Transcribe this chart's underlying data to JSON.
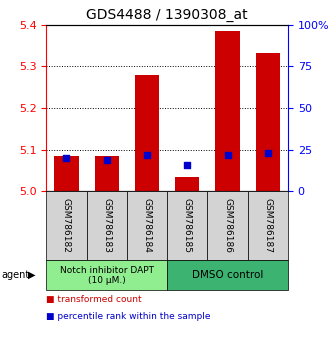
{
  "title": "GDS4488 / 1390308_at",
  "samples": [
    "GSM786182",
    "GSM786183",
    "GSM786184",
    "GSM786185",
    "GSM786186",
    "GSM786187"
  ],
  "red_values": [
    5.085,
    5.085,
    5.28,
    5.033,
    5.385,
    5.332
  ],
  "blue_percentiles": [
    20,
    19,
    22,
    16,
    22,
    23
  ],
  "ylim_left": [
    5.0,
    5.4
  ],
  "ylim_right": [
    0,
    100
  ],
  "yticks_left": [
    5.0,
    5.1,
    5.2,
    5.3,
    5.4
  ],
  "yticks_right": [
    0,
    25,
    50,
    75,
    100
  ],
  "ytick_labels_right": [
    "0",
    "25",
    "50",
    "75",
    "100%"
  ],
  "group1_label": "Notch inhibitor DAPT\n(10 μM.)",
  "group2_label": "DMSO control",
  "group1_color": "#90EE90",
  "group2_color": "#3CB371",
  "bar_color": "#CC0000",
  "blue_color": "#0000CC",
  "bar_baseline": 5.0,
  "bar_width": 0.6,
  "agent_label": "agent",
  "legend1": "transformed count",
  "legend2": "percentile rank within the sample",
  "group1_indices": [
    0,
    1,
    2
  ],
  "group2_indices": [
    3,
    4,
    5
  ]
}
